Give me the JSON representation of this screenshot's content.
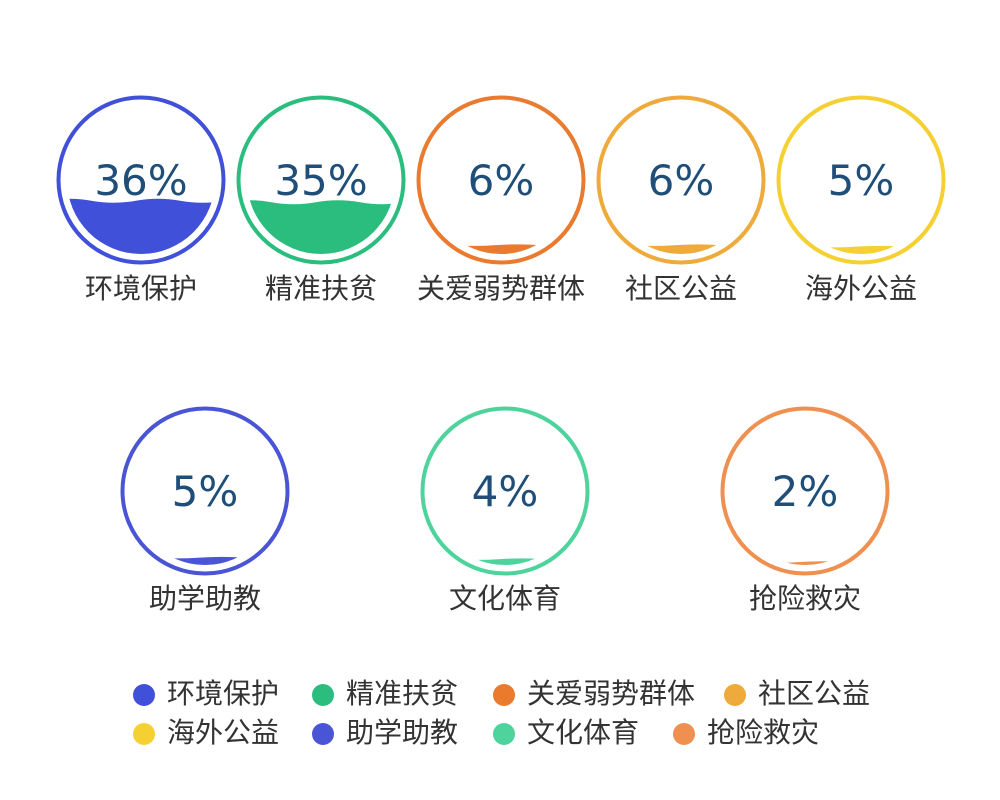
{
  "chart_data": {
    "type": "liquidfill",
    "series": [
      {
        "name": "环境保护",
        "value": 36,
        "label": "36%",
        "color": "#4150d8"
      },
      {
        "name": "精准扶贫",
        "value": 35,
        "label": "35%",
        "color": "#2bbd7e"
      },
      {
        "name": "关爱弱势群体",
        "value": 6,
        "label": "6%",
        "color": "#e97a2e"
      },
      {
        "name": "社区公益",
        "value": 6,
        "label": "6%",
        "color": "#eeaa3a"
      },
      {
        "name": "海外公益",
        "value": 5,
        "label": "5%",
        "color": "#f5d033"
      },
      {
        "name": "助学助教",
        "value": 5,
        "label": "5%",
        "color": "#4a55d6"
      },
      {
        "name": "文化体育",
        "value": 4,
        "label": "4%",
        "color": "#4ed39d"
      },
      {
        "name": "抢险救灾",
        "value": 2,
        "label": "2%",
        "color": "#ef9050"
      }
    ],
    "legend": {
      "position": "bottom",
      "items": [
        "环境保护",
        "精准扶贫",
        "关爱弱势群体",
        "社区公益",
        "海外公益",
        "助学助教",
        "文化体育",
        "抢险救灾"
      ]
    }
  }
}
